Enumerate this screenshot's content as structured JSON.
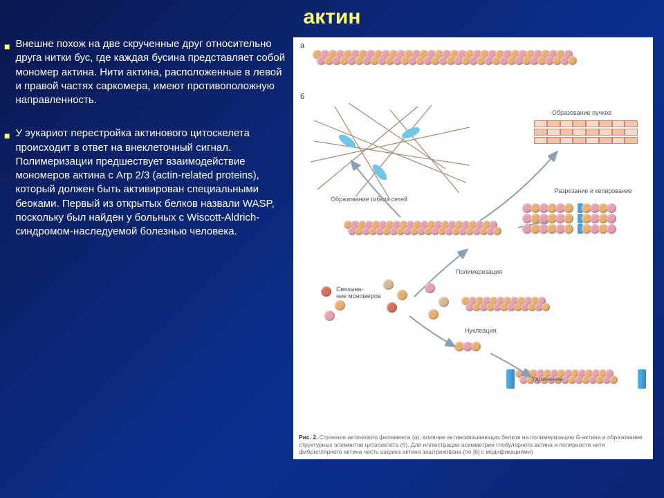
{
  "title": "актин",
  "bullets": {
    "b1": "Внешне похож на две скрученные друг относительно друга нитки бус, где каждая бусина представляет собой мономер актина. Нити актина, расположенные в левой и правой частях саркомера, имеют противоположную направленность.",
    "b2": "У эукариот перестройка актинового цитоскелета происходит в ответ на внеклеточный сигнал. Полимеризации предшествует взаимодействие мономеров актина с Arp 2/3 (actin-related proteins), который должен быть активирован специальными беоками. Первый из открытых белков назвали WASP, поскольку был найден у больных с Wiscott-Aldrich-синдромом-наследуемой болезнью человека."
  },
  "diagram": {
    "panel_a": "а",
    "panel_b": "б",
    "labels": {
      "network": "Образование гибких сетей",
      "bundles": "Образование пучков",
      "cutting": "Разрезание и кепирование",
      "polymerization": "Полимеризация",
      "binding": "Связыва-\nние мономеров",
      "nucleation": "Нуклеация",
      "elongation": "Удлинение"
    },
    "caption_bold": "Рис. 2.",
    "caption_text": " Строение актинового филамента (а), влияние актинсвязывающих белков на полимеризацию G-актина и образование структурных элементов цитоскелета (б). Для иллюстрации асимметрии глобулярного актина и полярности нити фибриллярного актина часть шарика актина заштрихована (по [6] с модификациями)",
    "colors": {
      "bead_pink": "#e8a0b0",
      "bead_orange": "#e8b070",
      "bead_red": "#d87060",
      "bead_tan": "#d9b896",
      "cap_blue": "#4aa3db",
      "arrow": "#8aa0b5",
      "net_line": "#a5876d"
    },
    "bead_count_top": 34,
    "bundle_rows": 3,
    "bundle_segments": 8
  }
}
